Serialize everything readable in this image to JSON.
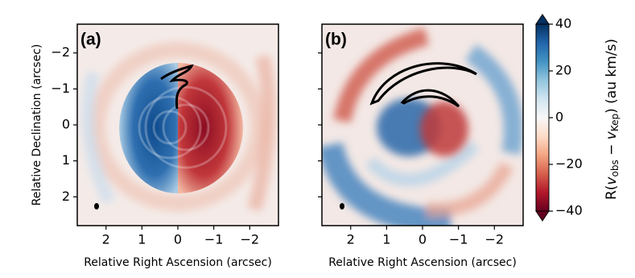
{
  "chart_data": [
    {
      "type": "image",
      "panel_label": "(a)",
      "xlabel": "Relative Right Ascension (arcsec)",
      "ylabel": "Relative Declination (arcsec)",
      "xlim": [
        2.8,
        -2.8
      ],
      "ylim": [
        2.8,
        -2.8
      ],
      "xticks": [
        2,
        1,
        0,
        {
          "value": -1,
          "label": "−1"
        },
        {
          "value": -2,
          "label": "−2"
        }
      ],
      "yticks": [
        {
          "value": -2,
          "label": "−2"
        },
        {
          "value": -1,
          "label": "−1"
        },
        0,
        1,
        2
      ]
    },
    {
      "type": "image",
      "panel_label": "(b)",
      "xlabel": "Relative Right Ascension (arcsec)",
      "xlim": [
        2.8,
        -2.8
      ],
      "ylim": [
        2.8,
        -2.8
      ],
      "xticks": [
        2,
        1,
        0,
        {
          "value": -1,
          "label": "−1"
        },
        {
          "value": -2,
          "label": "−2"
        }
      ],
      "yticks": [
        -2,
        -1,
        0,
        1,
        2
      ],
      "colorbar": {
        "label": [
          "R(",
          "v",
          "obs",
          " − ",
          "v",
          "Kep",
          ") (au km/s)"
        ],
        "lim": [
          -40,
          40
        ],
        "ticks": [
          {
            "value": -40,
            "label": "−40"
          },
          {
            "value": -20,
            "label": "−20"
          },
          0,
          20,
          40
        ],
        "colors": [
          "#67001f",
          "#b2182b",
          "#d6604d",
          "#f4a582",
          "#fddbc7",
          "#f7f7f7",
          "#d1e5f0",
          "#92c5de",
          "#4393c3",
          "#2166ac",
          "#053061"
        ]
      }
    }
  ]
}
